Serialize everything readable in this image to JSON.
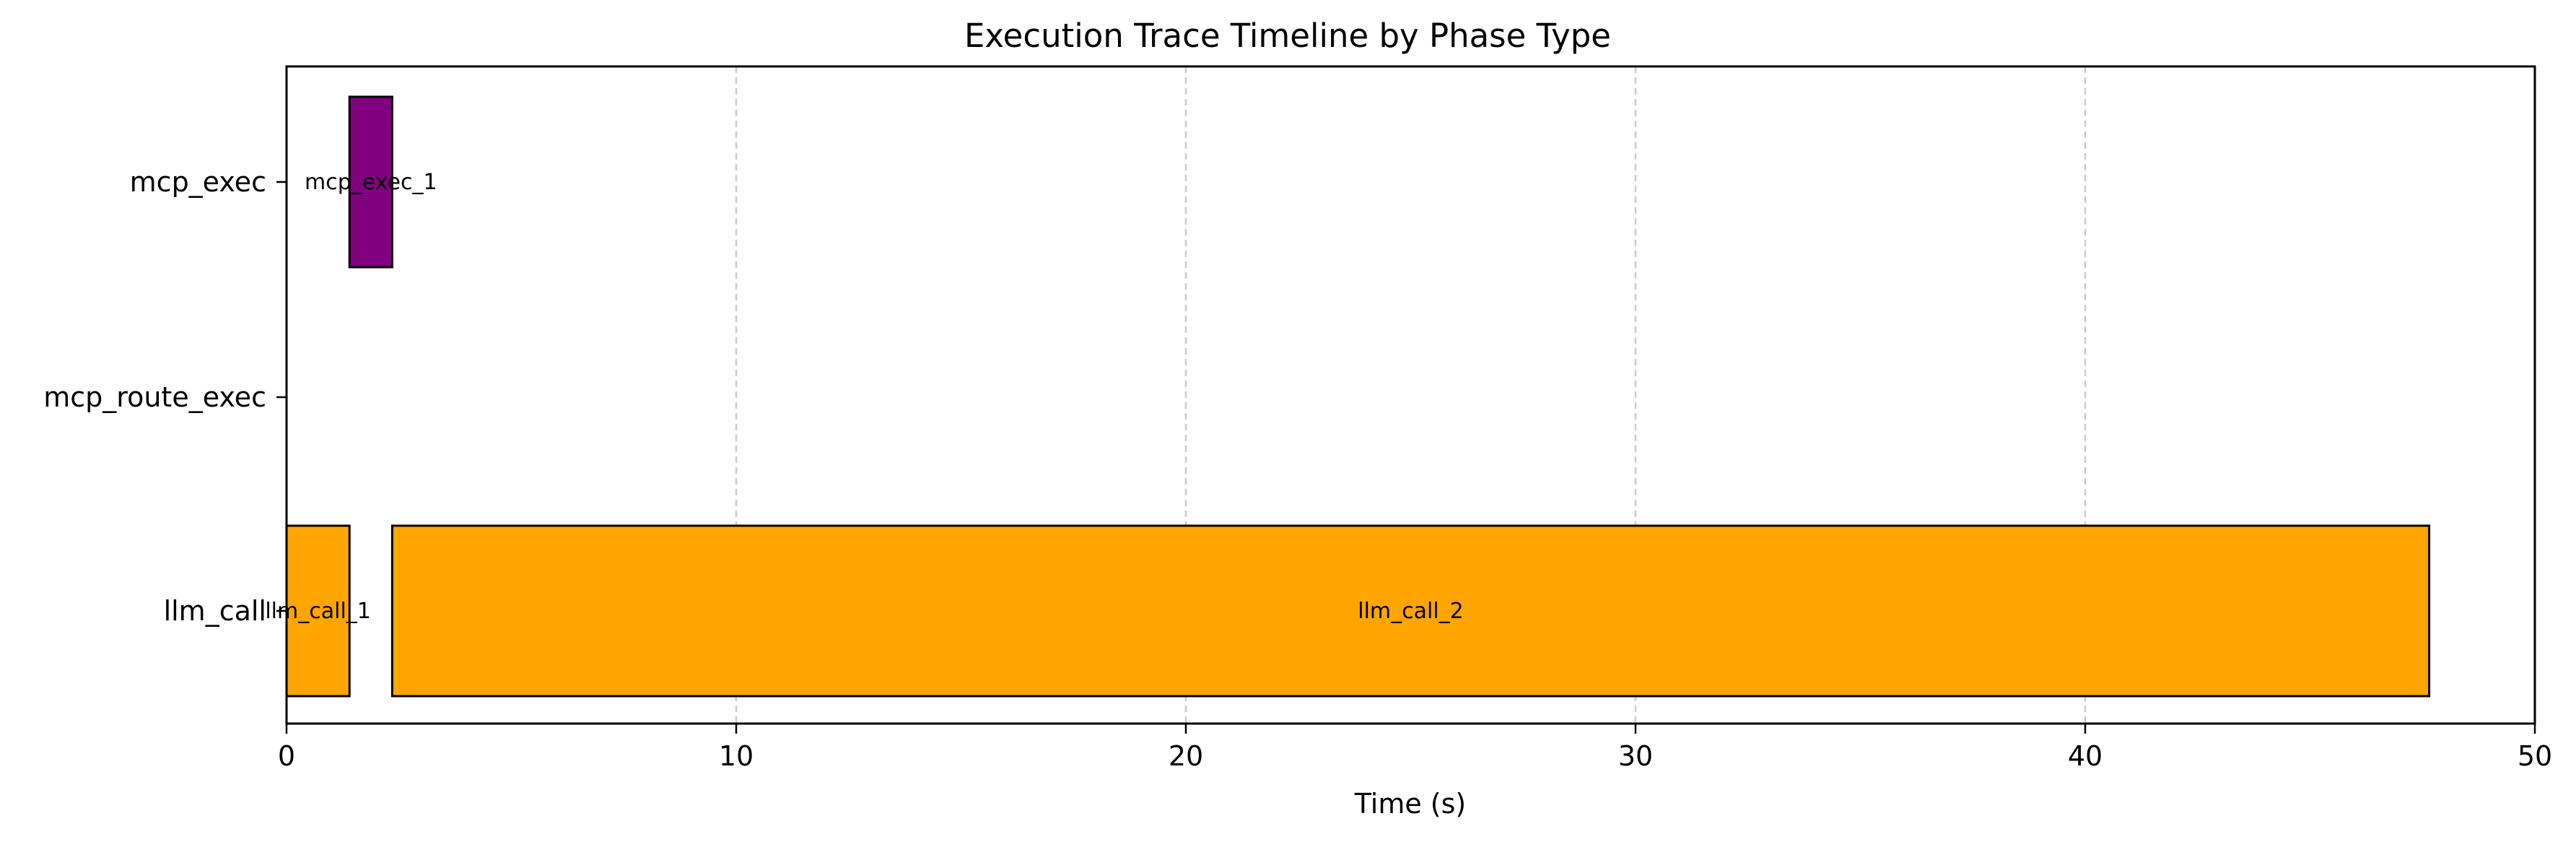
{
  "chart_data": {
    "type": "bar",
    "orientation": "horizontal-timeline",
    "title": "Execution Trace Timeline by Phase Type",
    "xlabel": "Time (s)",
    "ylabel": "",
    "xlim": [
      0,
      50
    ],
    "xticks": [
      0,
      10,
      20,
      30,
      40,
      50
    ],
    "categories": [
      "mcp_exec",
      "mcp_route_exec",
      "llm_call"
    ],
    "grid": {
      "x": true,
      "y": false,
      "style": "dashed"
    },
    "segments": [
      {
        "label": "llm_call_1",
        "category": "llm_call",
        "start": 0.0,
        "end": 1.4,
        "color": "#FFA500"
      },
      {
        "label": "mcp_exec_1",
        "category": "mcp_exec",
        "start": 1.4,
        "end": 2.35,
        "color": "#800080"
      },
      {
        "label": "llm_call_2",
        "category": "llm_call",
        "start": 2.35,
        "end": 47.65,
        "color": "#FFA500"
      }
    ]
  }
}
